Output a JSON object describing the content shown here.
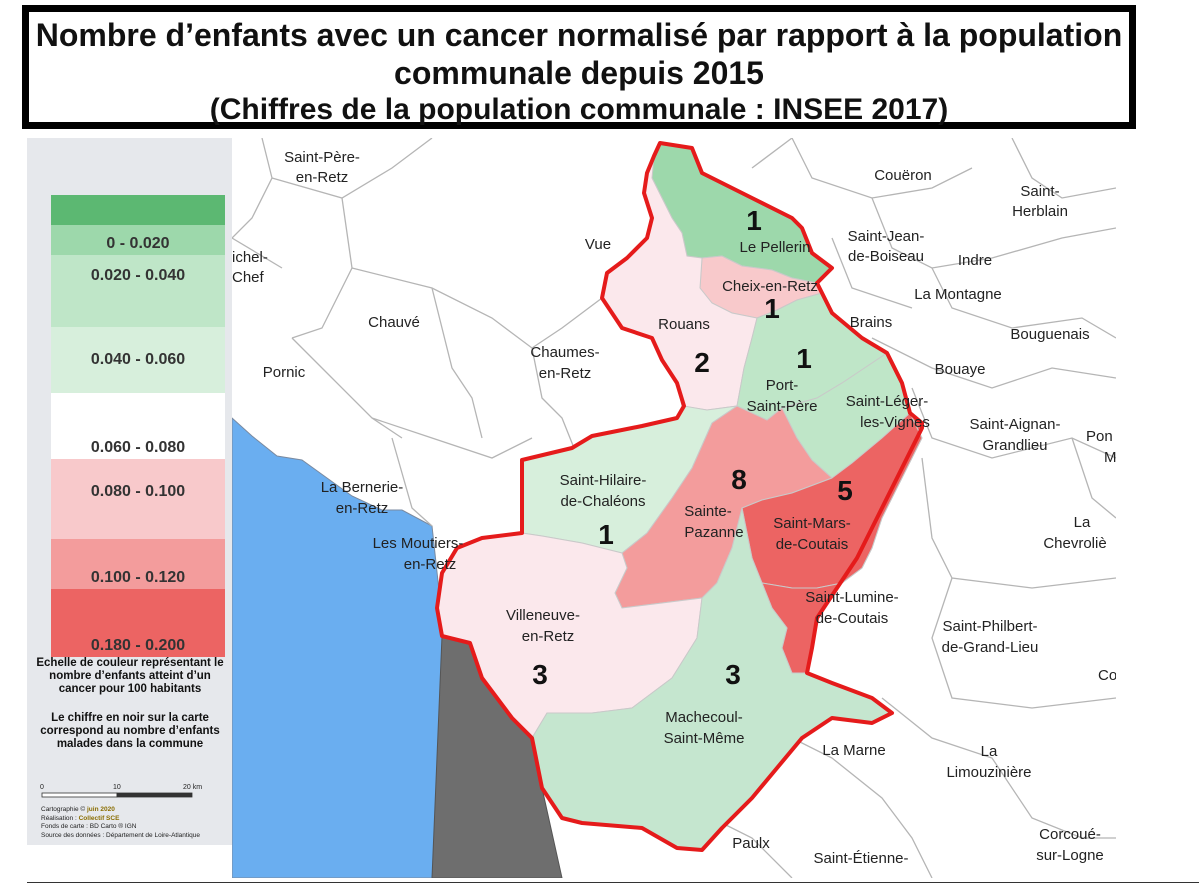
{
  "title": {
    "line1": "Nombre d’enfants avec un cancer normalisé par rapport à la population",
    "line2": "communale depuis 2015",
    "line3": "(Chiffres de la population communale : INSEE 2017)"
  },
  "legend": {
    "classes": [
      {
        "label": "",
        "color": "#5cb872"
      },
      {
        "label": "0 - 0.020",
        "color": "#9dd8ab"
      },
      {
        "label": "0.020 - 0.040",
        "color": "#bfe6c8"
      },
      {
        "label": "0.040 - 0.060",
        "color": "#d7efdc"
      },
      {
        "label": "0.060 - 0.080",
        "color": "#ffffff"
      },
      {
        "label": "0.080 - 0.100",
        "color": "#f8c9cb"
      },
      {
        "label": "0.100 - 0.120",
        "color": "#f39c9c"
      },
      {
        "label": "0.180 - 0.200",
        "color": "#ec6463"
      }
    ],
    "caption1": "Echelle de couleur représentant le nombre d’enfants atteint d’un cancer pour 100 habitants",
    "caption2": "Le chiffre en noir sur la carte correspond au nombre d’enfants malades dans la commune",
    "scale": {
      "ticks": [
        "0",
        "10",
        "20 km"
      ]
    },
    "credits": {
      "line1_prefix": "Cartographie ©",
      "line1_value": "juin 2020",
      "line2_prefix": "Réalisation :",
      "line2_value": "Collectif SCE",
      "line3": "Fonds de carte : BD Carto ® IGN",
      "line4": "Source des données : Département de Loire-Atlantique"
    }
  },
  "map": {
    "colors": {
      "boundary": "#e51b1b",
      "sea": "#6aaef0",
      "land_gray": "#6e6e6e",
      "commune_line": "#b5b5b5"
    },
    "communes": [
      {
        "name": "Le Pellerin",
        "count": "1",
        "color": "#9dd8ab"
      },
      {
        "name": "Cheix-en-Retz",
        "count": "1",
        "color": "#f8c9cb"
      },
      {
        "name": "Rouans",
        "count": "2",
        "color": "#fbe8ec"
      },
      {
        "name": "Port-Saint-Père",
        "count": "1",
        "color": "#bfe6c8"
      },
      {
        "name": "Saint-Léger-les-Vignes",
        "count": "",
        "color": "#bfe6c8"
      },
      {
        "name": "Saint-Hilaire-de-Chaléons",
        "count": "1",
        "color": "#d7efdc"
      },
      {
        "name": "Sainte-Pazanne",
        "count": "8",
        "color": "#f39c9c"
      },
      {
        "name": "Saint-Mars-de-Coutais",
        "count": "5",
        "color": "#ec6463"
      },
      {
        "name": "Saint-Lumine-de-Coutais",
        "count": "",
        "color": "#ec6463"
      },
      {
        "name": "Villeneuve-en-Retz",
        "count": "3",
        "color": "#fbe8ec"
      },
      {
        "name": "Machecoul-Saint-Même",
        "count": "3",
        "color": "#c5e6cf"
      }
    ],
    "labels": {
      "saint_pere_1": "Saint-Père-",
      "saint_pere_2": "en-Retz",
      "coueron": "Couëron",
      "saint_herblain_1": "Saint-",
      "saint_herblain_2": "Herblain",
      "vue": "Vue",
      "saint_jean_1": "Saint-Jean-",
      "saint_jean_2": "de-Boiseau",
      "indre": "Indre",
      "saint_michel_1": "ichel-",
      "saint_michel_2": "Chef",
      "la_montagne": "La Montagne",
      "chauve": "Chauvé",
      "brains": "Brains",
      "bouguenais": "Bouguenais",
      "pornic": "Pornic",
      "chaumes_1": "Chaumes-",
      "chaumes_2": "en-Retz",
      "bouaye": "Bouaye",
      "saint_leger_1": "Saint-Léger-",
      "saint_leger_2": "les-Vignes",
      "saint_aignan_1": "Saint-Aignan-",
      "saint_aignan_2": "Grandlieu",
      "pont_1": "Pon",
      "pont_2": "M",
      "la_bernerie_1": "La Bernerie-",
      "la_bernerie_2": "en-Retz",
      "les_moutiers_1": "Les Moutiers-",
      "les_moutiers_2": "en-Retz",
      "la_chevroliere_1": "La",
      "la_chevroliere_2": "Chevroliè",
      "saint_philbert_1": "Saint-Philbert-",
      "saint_philbert_2": "de-Grand-Lieu",
      "co": "Co",
      "la_marne": "La Marne",
      "la_limouziniere_1": "La",
      "la_limouziniere_2": "Limouzinière",
      "paulx": "Paulx",
      "saint_etienne": "Saint-Étienne-",
      "corcoue_1": "Corcoué-",
      "corcoue_2": "sur-Logne",
      "le_pellerin": "Le Pellerin",
      "cheix": "Cheix-en-Retz",
      "rouans": "Rouans",
      "port_st_pere_1": "Port-",
      "port_st_pere_2": "Saint-Père",
      "st_hilaire_1": "Saint-Hilaire-",
      "st_hilaire_2": "de-Chaléons",
      "ste_pazanne_1": "Sainte-",
      "ste_pazanne_2": "Pazanne",
      "st_mars_1": "Saint-Mars-",
      "st_mars_2": "de-Coutais",
      "st_lumine_1": "Saint-Lumine-",
      "st_lumine_2": "de-Coutais",
      "villeneuve_1": "Villeneuve-",
      "villeneuve_2": "en-Retz",
      "machecoul_1": "Machecoul-",
      "machecoul_2": "Saint-Même"
    }
  }
}
